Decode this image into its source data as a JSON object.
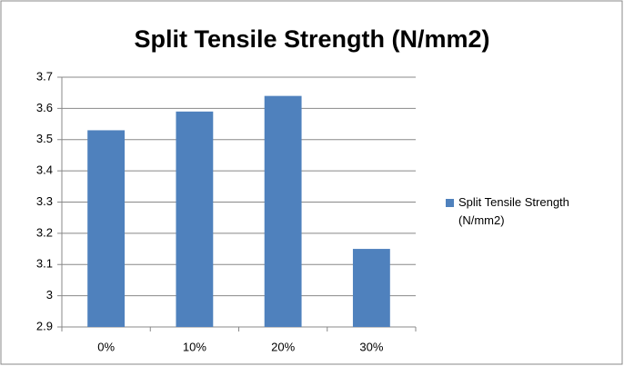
{
  "chart_data": {
    "type": "bar",
    "title": "Split Tensile Strength (N/mm2)",
    "categories": [
      "0%",
      "10%",
      "20%",
      "30%"
    ],
    "series": [
      {
        "name": "Split Tensile Strength (N/mm2)",
        "color": "#4f81bd",
        "values": [
          3.53,
          3.59,
          3.64,
          3.15
        ]
      }
    ],
    "ylim": [
      2.9,
      3.7
    ],
    "yticks": [
      2.9,
      3,
      3.1,
      3.2,
      3.3,
      3.4,
      3.5,
      3.6,
      3.7
    ],
    "grid": true,
    "legend": "right"
  }
}
